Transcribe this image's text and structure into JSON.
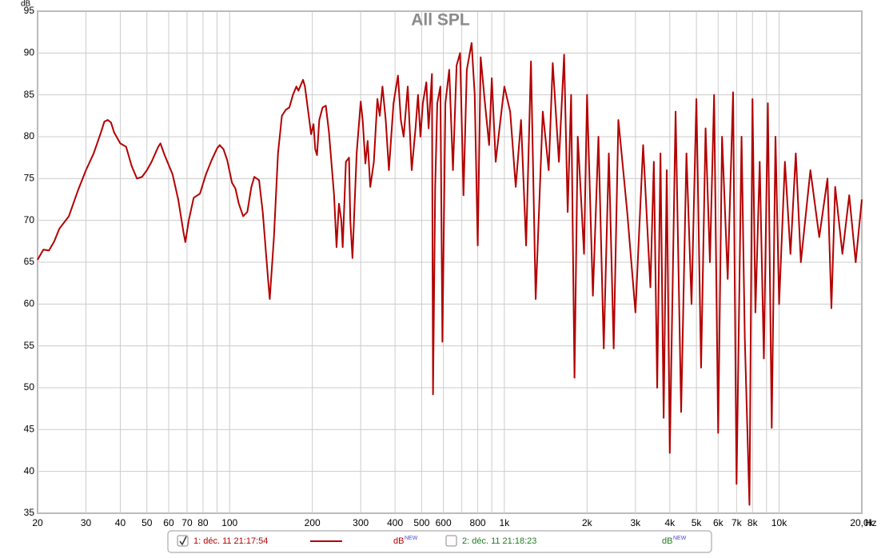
{
  "chart_data": {
    "type": "line",
    "title": "All SPL",
    "y_label": "dB",
    "x_unit": "Hz",
    "log_x": true,
    "grid": true,
    "xlim": [
      20,
      20000
    ],
    "ylim": [
      35,
      95
    ],
    "yticks": [
      35,
      40,
      45,
      50,
      55,
      60,
      65,
      70,
      75,
      80,
      85,
      90,
      95
    ],
    "xticks": [
      20,
      30,
      40,
      50,
      60,
      70,
      80,
      100,
      200,
      300,
      400,
      500,
      600,
      800,
      {
        "value": 1000,
        "label": "1k"
      },
      {
        "value": 2000,
        "label": "2k"
      },
      {
        "value": 3000,
        "label": "3k"
      },
      {
        "value": 4000,
        "label": "4k"
      },
      {
        "value": 5000,
        "label": "5k"
      },
      {
        "value": 6000,
        "label": "6k"
      },
      {
        "value": 7000,
        "label": "7k"
      },
      {
        "value": 8000,
        "label": "8k"
      },
      {
        "value": 10000,
        "label": "10k"
      },
      {
        "value": 20000,
        "label": "20,0k"
      }
    ],
    "xgrid_minor": [
      90,
      700,
      900,
      9000
    ],
    "x": [
      20,
      21,
      22,
      23,
      24,
      26,
      28,
      30,
      32,
      34,
      35,
      36,
      37,
      38,
      40,
      42,
      44,
      46,
      48,
      50,
      52,
      55,
      56,
      58,
      62,
      65,
      68,
      69,
      71,
      74,
      78,
      82,
      86,
      90,
      92,
      95,
      98,
      102,
      105,
      108,
      112,
      116,
      120,
      123,
      128,
      132,
      138,
      140,
      145,
      150,
      155,
      160,
      165,
      170,
      175,
      178,
      185,
      188,
      195,
      198,
      202,
      205,
      208,
      212,
      218,
      224,
      230,
      240,
      245,
      250,
      255,
      258,
      265,
      272,
      275,
      280,
      290,
      300,
      305,
      312,
      318,
      325,
      335,
      345,
      352,
      360,
      370,
      380,
      395,
      410,
      420,
      430,
      445,
      460,
      475,
      485,
      495,
      505,
      520,
      530,
      545,
      550,
      560,
      570,
      585,
      595,
      610,
      630,
      650,
      670,
      690,
      710,
      730,
      760,
      780,
      800,
      820,
      850,
      880,
      900,
      930,
      960,
      1000,
      1050,
      1100,
      1150,
      1200,
      1250,
      1300,
      1380,
      1450,
      1500,
      1580,
      1650,
      1700,
      1750,
      1800,
      1850,
      1950,
      2000,
      2100,
      2200,
      2300,
      2400,
      2500,
      2600,
      2800,
      3000,
      3200,
      3400,
      3500,
      3600,
      3700,
      3800,
      3900,
      4000,
      4200,
      4400,
      4600,
      4800,
      5000,
      5200,
      5400,
      5600,
      5800,
      6000,
      6200,
      6500,
      6800,
      7000,
      7300,
      7500,
      7800,
      8000,
      8200,
      8500,
      8800,
      9100,
      9400,
      9700,
      10000,
      10500,
      11000,
      11500,
      12000,
      13000,
      14000,
      15000,
      15500,
      16000,
      17000,
      18000,
      19000,
      20000
    ],
    "series": [
      {
        "name": "1: déc. 11 21:17:54",
        "color": "#b30000",
        "visible": true,
        "values": [
          65.3,
          66.5,
          66.4,
          67.5,
          69,
          70.5,
          73.5,
          76,
          78,
          80.5,
          81.8,
          82,
          81.7,
          80.5,
          79.2,
          78.8,
          76.5,
          75,
          75.2,
          76,
          77,
          78.8,
          79.2,
          77.8,
          75.5,
          72.5,
          68.5,
          67.4,
          70,
          72.7,
          73.2,
          75.5,
          77.2,
          78.6,
          79,
          78.5,
          77.2,
          74.5,
          73.8,
          72,
          70.5,
          71,
          74,
          75.2,
          74.8,
          71,
          63,
          60.6,
          68,
          78,
          82.5,
          83.2,
          83.5,
          85,
          86,
          85.5,
          86.8,
          86,
          82,
          80.3,
          81.5,
          78.5,
          77.8,
          82,
          83.5,
          83.7,
          80.5,
          73,
          66.8,
          72,
          70,
          66.8,
          77,
          77.5,
          70,
          65.5,
          78,
          84.2,
          82,
          76.8,
          79.5,
          74,
          77,
          84.5,
          82.5,
          86,
          82,
          76,
          84,
          87.3,
          82,
          80,
          86,
          76,
          81,
          85,
          80,
          84,
          86.5,
          81,
          87.5,
          49.2,
          74,
          84,
          86,
          55.5,
          84,
          88,
          76,
          88.5,
          90,
          73,
          88,
          91.2,
          85,
          67,
          89.5,
          84,
          79,
          87,
          77,
          81,
          86,
          83,
          74,
          82,
          67,
          89,
          60.6,
          83,
          76,
          88.8,
          77,
          89.8,
          71,
          85,
          51.2,
          80,
          66,
          85,
          61,
          80,
          54.7,
          78,
          54.7,
          82,
          71,
          59,
          79,
          62,
          77,
          50,
          78,
          46.4,
          76,
          42.2,
          83,
          47.1,
          78,
          60,
          84.5,
          52.4,
          81,
          65,
          85,
          44.6,
          80,
          63,
          85.3,
          38.5,
          80,
          56,
          36,
          84.5,
          59,
          77,
          53.5,
          84,
          45.2,
          80,
          60,
          77,
          66,
          78,
          65,
          76,
          68,
          75,
          59.5,
          74,
          66,
          73,
          65,
          72.5
        ]
      },
      {
        "name": "2: déc. 11 21:18:23",
        "color": "#1f7a1f",
        "visible": false
      }
    ],
    "legend_unit": "dB",
    "legend_tag": "NEW"
  }
}
